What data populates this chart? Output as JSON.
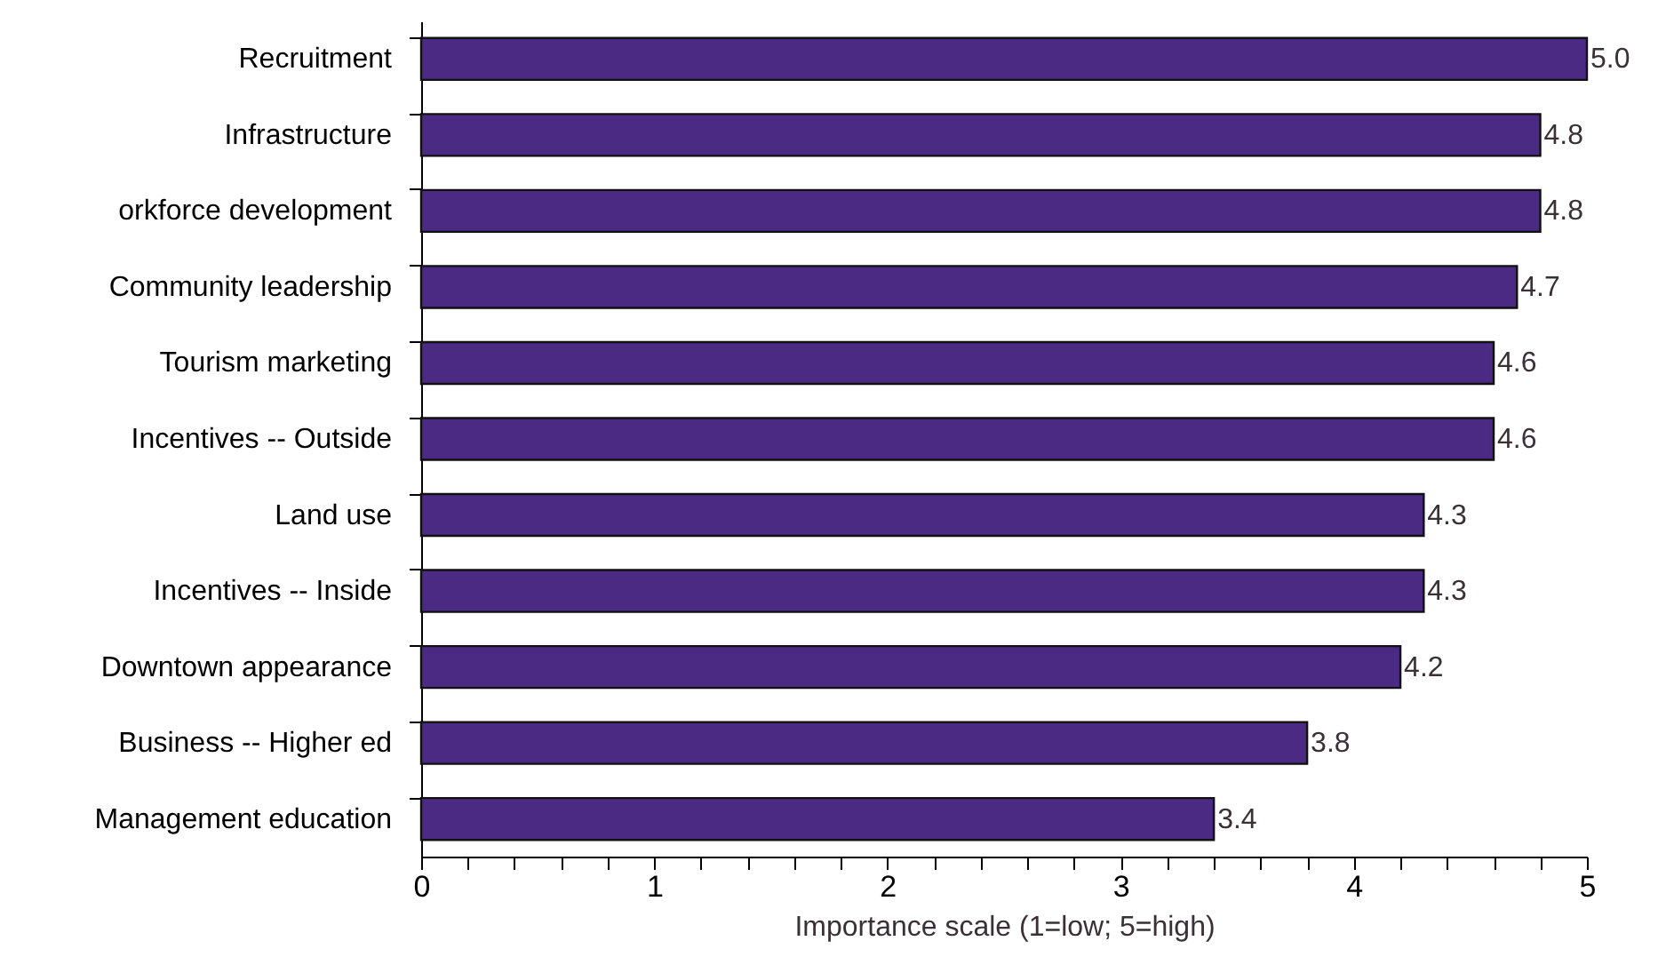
{
  "chart_data": {
    "type": "bar",
    "orientation": "horizontal",
    "xlabel": "Importance scale (1=low; 5=high)",
    "categories": [
      "Recruitment",
      "Infrastructure",
      "orkforce development",
      "Community leadership",
      "Tourism marketing",
      "Incentives -- Outside",
      "Land use",
      "Incentives -- Inside",
      "Downtown appearance",
      "Business -- Higher ed",
      "Management education"
    ],
    "values": [
      5.0,
      4.8,
      4.8,
      4.7,
      4.6,
      4.6,
      4.3,
      4.3,
      4.2,
      3.8,
      3.4
    ],
    "value_labels": [
      "5.0",
      "4.8",
      "4.8",
      "4.7",
      "4.6",
      "4.6",
      "4.3",
      "4.3",
      "4.2",
      "3.8",
      "3.4"
    ],
    "color": "#4a2a82",
    "xlim": [
      0,
      5
    ],
    "xticks": [
      0,
      {
        "value": 0.2,
        "label": null
      },
      {
        "value": 0.4,
        "label": null
      },
      {
        "value": 0.6,
        "label": null
      },
      {
        "value": 0.8,
        "label": null
      },
      1,
      {
        "value": 1.2,
        "label": null
      },
      {
        "value": 1.4,
        "label": null
      },
      {
        "value": 1.6,
        "label": null
      },
      {
        "value": 1.8,
        "label": null
      },
      2,
      {
        "value": 2.2,
        "label": null
      },
      {
        "value": 2.4,
        "label": null
      },
      {
        "value": 2.6,
        "label": null
      },
      {
        "value": 2.8,
        "label": null
      },
      3,
      {
        "value": 3.2,
        "label": null
      },
      {
        "value": 3.4,
        "label": null
      },
      {
        "value": 3.6,
        "label": null
      },
      {
        "value": 3.8,
        "label": null
      },
      4,
      {
        "value": 4.2,
        "label": null
      },
      {
        "value": 4.4,
        "label": null
      },
      {
        "value": 4.6,
        "label": null
      },
      {
        "value": 4.8,
        "label": null
      },
      5
    ],
    "grid": false
  }
}
